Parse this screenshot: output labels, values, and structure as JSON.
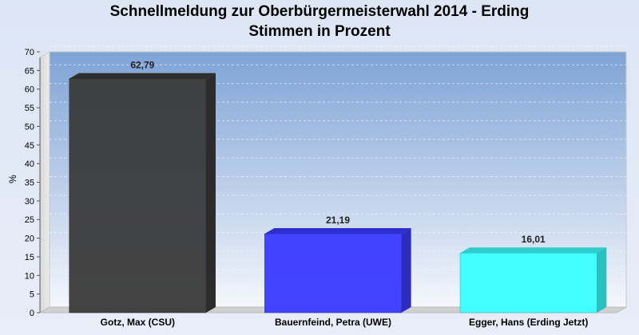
{
  "chart_data": {
    "type": "bar",
    "title": "Schnellmeldung zur Oberbürgermeisterwahl 2014 - Erding",
    "subtitle": "Stimmen in Prozent",
    "xlabel": "",
    "ylabel": "%",
    "ylim": [
      0,
      70
    ],
    "yticks": [
      0,
      5,
      10,
      15,
      20,
      25,
      30,
      35,
      40,
      45,
      50,
      55,
      60,
      65,
      70
    ],
    "grid": true,
    "legend": "none",
    "three_d": true,
    "categories": [
      "Gotz, Max (CSU)",
      "Bauernfeind, Petra (UWE)",
      "Egger, Hans (Erding Jetzt)"
    ],
    "values": [
      62.79,
      21.19,
      16.01
    ],
    "value_labels": [
      "62,79",
      "21,19",
      "16,01"
    ],
    "bar_colors": [
      "#3a3a3a",
      "#3a3aff",
      "#3affff"
    ]
  }
}
